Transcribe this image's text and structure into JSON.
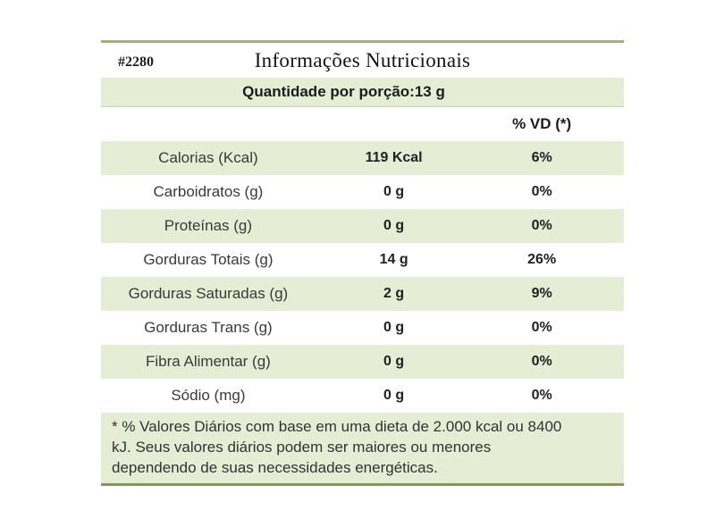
{
  "header": {
    "code": "#2280",
    "title": "Informações Nutricionais"
  },
  "serving_band": {
    "text": "Quantidade por porção:13 g"
  },
  "table": {
    "vd_column_header": "% VD (*)",
    "rows": [
      {
        "label": "Calorias (Kcal)",
        "amount": "119 Kcal",
        "vd": "6%"
      },
      {
        "label": "Carboidratos (g)",
        "amount": "0 g",
        "vd": "0%"
      },
      {
        "label": "Proteínas (g)",
        "amount": "0 g",
        "vd": "0%"
      },
      {
        "label": "Gorduras Totais (g)",
        "amount": "14 g",
        "vd": "26%"
      },
      {
        "label": "Gorduras Saturadas (g)",
        "amount": "2 g",
        "vd": "9%"
      },
      {
        "label": "Gorduras Trans (g)",
        "amount": "0 g",
        "vd": "0%"
      },
      {
        "label": "Fibra Alimentar (g)",
        "amount": "0 g",
        "vd": "0%"
      },
      {
        "label": "Sódio (mg)",
        "amount": "0 g",
        "vd": "0%"
      }
    ]
  },
  "footnote": {
    "lines": [
      "* % Valores Diários com base em uma dieta de 2.000 kcal ou 8400",
      "kJ. Seus valores diários podem ser maiores ou menores",
      "dependendo de suas necessidades energéticas."
    ]
  },
  "colors": {
    "row_green": "#e5edd5",
    "rule_top": "#a0b36d",
    "rule_bottom": "#839850"
  }
}
